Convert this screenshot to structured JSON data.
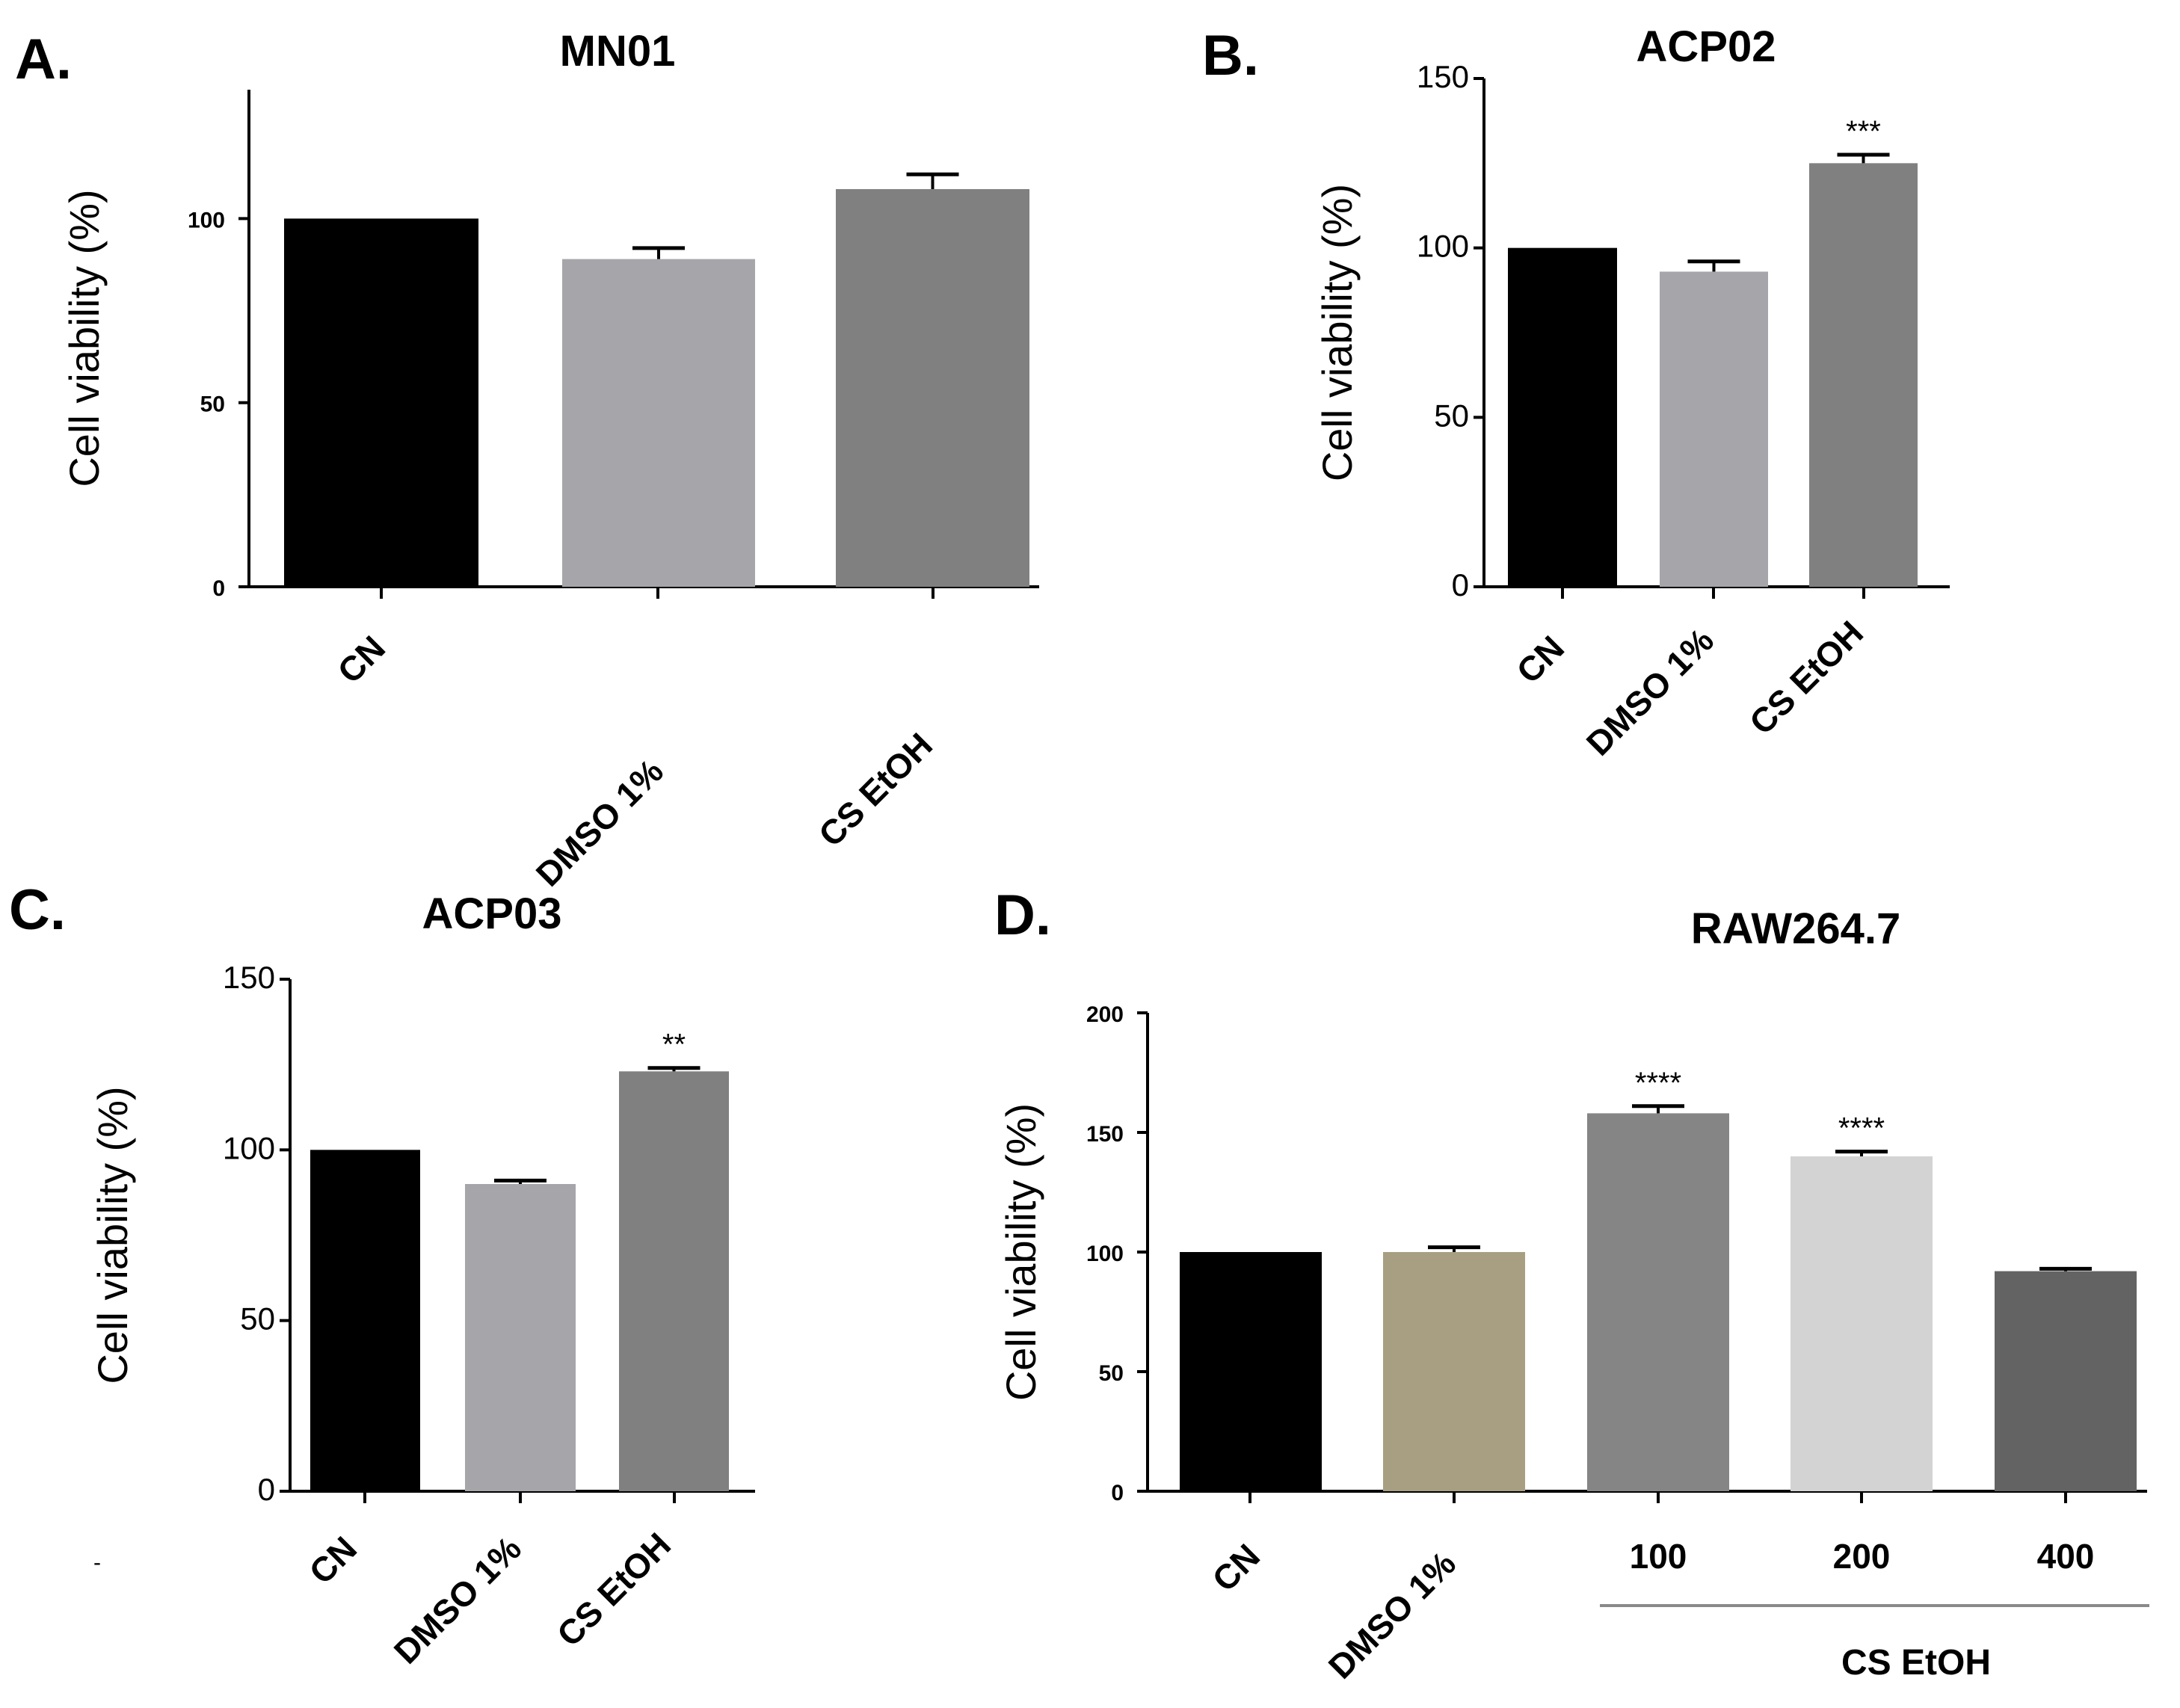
{
  "chart_data": [
    {
      "panel": "A.",
      "type": "bar",
      "title": "MN01",
      "ylabel": "Cell viability (%)",
      "ylim": [
        0,
        135
      ],
      "yticks": [
        "0",
        "50",
        "100"
      ],
      "categories": [
        "CN",
        "DMSO 1%",
        "CS EtOH"
      ],
      "values": [
        100,
        89,
        108
      ],
      "errors": [
        0,
        3,
        4
      ],
      "colors": [
        "#000000",
        "#a6a6aa",
        "#808080"
      ],
      "significance": [
        "",
        "",
        ""
      ]
    },
    {
      "panel": "B.",
      "type": "bar",
      "title": "ACP02",
      "ylabel": "Cell viability (%)",
      "ylim": [
        0,
        150
      ],
      "yticks": [
        "0",
        "50",
        "100",
        "150"
      ],
      "categories": [
        "CN",
        "DMSO 1%",
        "CS EtOH"
      ],
      "values": [
        100,
        93,
        125
      ],
      "errors": [
        0,
        3,
        2.5
      ],
      "colors": [
        "#000000",
        "#a6a6aa",
        "#808080"
      ],
      "significance": [
        "",
        "",
        "***"
      ]
    },
    {
      "panel": "C.",
      "type": "bar",
      "title": "ACP03",
      "ylabel": "Cell viability (%)",
      "ylim": [
        0,
        150
      ],
      "yticks": [
        "0",
        "50",
        "100",
        "150"
      ],
      "categories": [
        "CN",
        "DMSO 1%",
        "CS EtOH"
      ],
      "values": [
        100,
        90,
        123
      ],
      "errors": [
        0,
        1,
        1
      ],
      "colors": [
        "#000000",
        "#a6a6aa",
        "#808080"
      ],
      "significance": [
        "",
        "",
        "**"
      ]
    },
    {
      "panel": "D.",
      "type": "bar",
      "title": "RAW264.7",
      "ylabel": "Cell viability (%)",
      "ylim": [
        0,
        200
      ],
      "yticks": [
        "0",
        "50",
        "100",
        "150",
        "200"
      ],
      "categories": [
        "CN",
        "DMSO 1%",
        "100",
        "200",
        "400"
      ],
      "values": [
        100,
        100,
        158,
        140,
        92
      ],
      "errors": [
        0,
        2,
        3,
        2,
        1
      ],
      "colors": [
        "#000000",
        "#a89e82",
        "#858585",
        "#d3d3d3",
        "#636363"
      ],
      "significance": [
        "",
        "",
        "****",
        "****",
        ""
      ],
      "group_label": "CS EtOH"
    }
  ],
  "stray_mark": "-"
}
